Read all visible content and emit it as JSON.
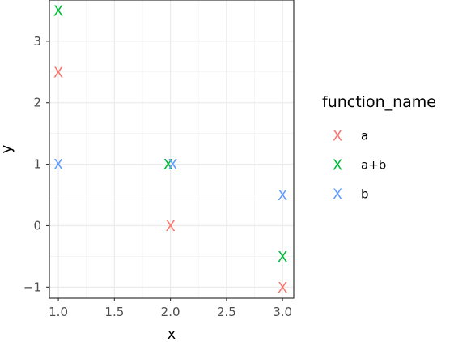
{
  "chart_data": {
    "type": "scatter",
    "xlabel": "x",
    "ylabel": "y",
    "xlim": [
      0.92,
      3.1
    ],
    "ylim": [
      -1.18,
      3.67
    ],
    "x_ticks": [
      "1.0",
      "1.5",
      "2.0",
      "2.5",
      "3.0"
    ],
    "x_tick_values": [
      1.0,
      1.5,
      2.0,
      2.5,
      3.0
    ],
    "y_ticks": [
      "-1",
      "0",
      "1",
      "2",
      "3"
    ],
    "y_tick_values": [
      -1,
      0,
      1,
      2,
      3
    ],
    "grid": true,
    "marker_glyph": "X",
    "legend": {
      "title": "function_name",
      "position": "right"
    },
    "series": [
      {
        "name": "a",
        "color": "#F8766D",
        "points": [
          [
            1,
            2.5
          ],
          [
            2,
            0
          ],
          [
            3,
            -1
          ]
        ]
      },
      {
        "name": "a+b",
        "color": "#00BA38",
        "points": [
          [
            1,
            3.5
          ],
          [
            1.98,
            1
          ],
          [
            3,
            -0.5
          ]
        ]
      },
      {
        "name": "b",
        "color": "#619CFF",
        "points": [
          [
            1,
            1
          ],
          [
            2.02,
            1
          ],
          [
            3,
            0.5
          ]
        ]
      }
    ]
  }
}
